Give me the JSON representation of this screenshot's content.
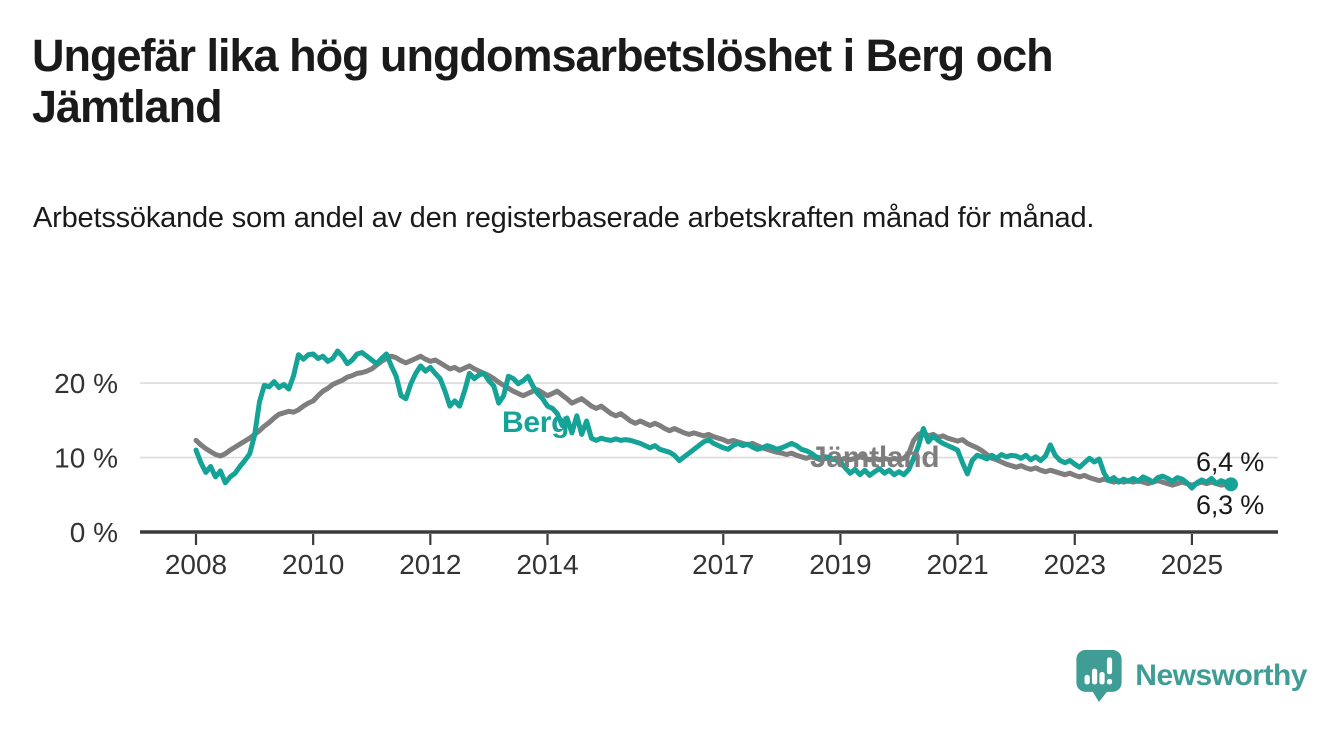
{
  "header": {
    "title": "Ungefär lika hög ungdomsarbetslöshet i Berg och Jämtland",
    "subtitle": "Arbetssökande som andel av den registerbaserade arbetskraften månad för månad."
  },
  "chart_data": {
    "type": "line",
    "unit": "%",
    "frequency": "monthly",
    "x_start_year": 2008,
    "x_start_month": 1,
    "x_end_year": 2025,
    "x_end_month": 9,
    "grid": true,
    "ylim": [
      0,
      26
    ],
    "y_ticks": [
      {
        "value": 0,
        "label": "0 %"
      },
      {
        "value": 10,
        "label": "10 %"
      },
      {
        "value": 20,
        "label": "20 %"
      }
    ],
    "x_ticks": [
      {
        "year": 2008,
        "label": "2008"
      },
      {
        "year": 2010,
        "label": "2010"
      },
      {
        "year": 2012,
        "label": "2012"
      },
      {
        "year": 2014,
        "label": "2014"
      },
      {
        "year": 2017,
        "label": "2017"
      },
      {
        "year": 2019,
        "label": "2019"
      },
      {
        "year": 2021,
        "label": "2021"
      },
      {
        "year": 2023,
        "label": "2023"
      },
      {
        "year": 2025,
        "label": "2025"
      }
    ],
    "series": [
      {
        "name": "Jämtland",
        "color": "#7e7e7e",
        "end_value": 6.3,
        "end_label": "6,3 %",
        "values": [
          12.3,
          11.7,
          11.2,
          10.8,
          10.4,
          10.2,
          10.5,
          11.0,
          11.4,
          11.8,
          12.2,
          12.6,
          13.1,
          13.6,
          14.2,
          14.7,
          15.3,
          15.8,
          16.0,
          16.2,
          16.1,
          16.4,
          16.9,
          17.3,
          17.6,
          18.3,
          18.9,
          19.3,
          19.8,
          20.1,
          20.4,
          20.8,
          21.0,
          21.3,
          21.4,
          21.6,
          21.9,
          22.4,
          22.9,
          23.3,
          23.6,
          23.4,
          23.0,
          22.7,
          23.0,
          23.3,
          23.6,
          23.2,
          22.9,
          23.1,
          22.7,
          22.3,
          21.9,
          22.1,
          21.7,
          22.0,
          22.3,
          21.9,
          21.6,
          21.3,
          21.0,
          20.6,
          20.1,
          19.7,
          19.3,
          18.9,
          18.6,
          18.3,
          18.6,
          18.9,
          19.1,
          18.7,
          18.3,
          18.6,
          18.9,
          18.4,
          17.9,
          17.3,
          17.6,
          17.9,
          17.4,
          16.9,
          16.6,
          16.9,
          16.4,
          15.9,
          15.6,
          15.9,
          15.4,
          14.9,
          14.6,
          14.9,
          14.6,
          14.3,
          14.6,
          14.3,
          13.9,
          13.6,
          13.9,
          13.6,
          13.3,
          13.1,
          13.3,
          13.1,
          12.9,
          13.1,
          12.8,
          12.6,
          12.4,
          12.1,
          12.3,
          12.1,
          11.9,
          11.7,
          11.9,
          11.6,
          11.3,
          11.1,
          10.9,
          10.7,
          10.6,
          10.4,
          10.6,
          10.3,
          10.1,
          9.9,
          10.1,
          9.9,
          9.7,
          9.9,
          9.7,
          9.9,
          9.7,
          9.9,
          9.7,
          9.9,
          10.1,
          9.9,
          9.7,
          9.9,
          9.7,
          9.9,
          9.7,
          9.9,
          9.7,
          9.9,
          10.6,
          12.3,
          13.1,
          13.4,
          12.9,
          13.1,
          12.7,
          12.9,
          12.6,
          12.4,
          12.2,
          12.4,
          11.9,
          11.6,
          11.3,
          10.9,
          10.4,
          9.9,
          9.7,
          9.4,
          9.1,
          8.9,
          8.7,
          8.9,
          8.6,
          8.4,
          8.6,
          8.3,
          8.1,
          8.3,
          8.1,
          7.9,
          7.7,
          7.9,
          7.6,
          7.4,
          7.6,
          7.3,
          7.1,
          6.9,
          7.1,
          6.9,
          6.7,
          6.9,
          6.7,
          6.9,
          6.7,
          6.9,
          6.7,
          6.5,
          6.7,
          6.9,
          6.7,
          6.5,
          6.3,
          6.5,
          6.7,
          6.5,
          6.3,
          6.5,
          6.7,
          6.5,
          6.7,
          6.5,
          6.3,
          6.4,
          6.3
        ]
      },
      {
        "name": "Berg",
        "color": "#14a396",
        "end_value": 6.4,
        "end_label": "6,4 %",
        "values": [
          11.0,
          9.3,
          8.0,
          8.8,
          7.4,
          8.2,
          6.6,
          7.4,
          7.9,
          8.8,
          9.6,
          10.5,
          13.0,
          17.5,
          19.7,
          19.5,
          20.2,
          19.4,
          19.8,
          19.2,
          21.0,
          23.8,
          23.2,
          23.8,
          23.9,
          23.3,
          23.6,
          22.9,
          23.3,
          24.3,
          23.6,
          22.6,
          23.1,
          23.9,
          24.1,
          23.6,
          23.1,
          22.6,
          23.3,
          23.9,
          22.3,
          20.9,
          18.3,
          17.9,
          19.9,
          21.3,
          22.3,
          21.6,
          22.1,
          21.3,
          20.6,
          18.9,
          16.9,
          17.6,
          16.9,
          18.9,
          21.3,
          20.6,
          21.1,
          21.3,
          20.3,
          19.6,
          17.3,
          18.3,
          20.9,
          20.6,
          19.9,
          20.3,
          20.9,
          19.6,
          18.6,
          17.9,
          16.9,
          16.6,
          15.9,
          14.3,
          15.3,
          13.3,
          15.6,
          13.1,
          14.9,
          12.6,
          12.3,
          12.6,
          12.4,
          12.3,
          12.5,
          12.3,
          12.4,
          12.3,
          12.1,
          11.9,
          11.6,
          11.3,
          11.6,
          11.1,
          10.9,
          10.7,
          10.3,
          9.6,
          10.1,
          10.6,
          11.1,
          11.6,
          12.1,
          12.4,
          11.9,
          11.6,
          11.3,
          11.1,
          11.6,
          11.9,
          11.6,
          11.8,
          11.4,
          11.1,
          11.3,
          11.6,
          11.4,
          11.1,
          11.3,
          11.6,
          11.9,
          11.6,
          11.1,
          10.9,
          10.6,
          10.1,
          9.9,
          10.1,
          9.9,
          9.7,
          9.4,
          8.6,
          7.9,
          8.4,
          7.7,
          8.3,
          7.6,
          8.1,
          8.5,
          7.9,
          8.3,
          7.7,
          8.1,
          7.7,
          8.4,
          9.9,
          11.6,
          13.9,
          12.1,
          12.9,
          12.3,
          11.9,
          11.6,
          11.3,
          11.0,
          9.3,
          7.8,
          9.6,
          10.3,
          10.1,
          9.8,
          10.3,
          9.9,
          10.4,
          10.1,
          10.3,
          10.2,
          9.9,
          10.3,
          9.7,
          10.1,
          9.6,
          10.2,
          11.7,
          10.3,
          9.6,
          9.3,
          9.6,
          9.1,
          8.7,
          9.3,
          9.9,
          9.4,
          9.8,
          7.9,
          6.9,
          7.3,
          6.7,
          7.1,
          6.8,
          7.2,
          6.8,
          7.4,
          7.1,
          6.7,
          7.3,
          7.5,
          7.2,
          6.8,
          7.3,
          7.1,
          6.6,
          5.9,
          6.6,
          7.0,
          6.7,
          7.2,
          6.5,
          6.9,
          6.6,
          6.4
        ]
      }
    ],
    "style": {
      "grid_color": "#dcdcdc",
      "axis_color": "#3b3b3b",
      "tick_label_color": "#333333"
    }
  },
  "footer": {
    "logo_text": "Newsworthy",
    "logo_color": "#3f9d96"
  }
}
